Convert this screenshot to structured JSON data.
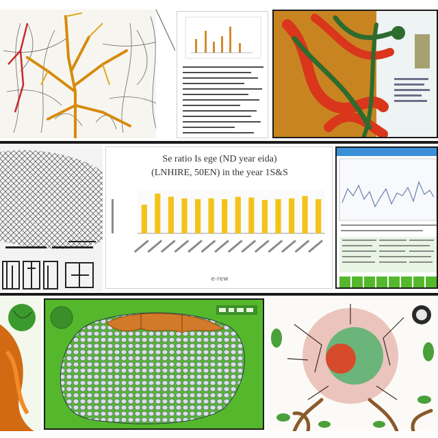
{
  "center_chart": {
    "title_line1": "Se ratio Is ege (ND year eida)",
    "title_line2": "(LNHIRE, 50EN) in the year 1S&S",
    "xlabel": "",
    "footer": "e-rew",
    "bar_color": "#f2c31a"
  },
  "chart_data": {
    "type": "bar",
    "categories": [
      "",
      "",
      "",
      "",
      "",
      "",
      "",
      "",
      "",
      "",
      "",
      "",
      "",
      ""
    ],
    "values": [
      72,
      100,
      92,
      88,
      86,
      88,
      86,
      92,
      90,
      84,
      86,
      88,
      94,
      86
    ],
    "ylim": [
      0,
      110
    ],
    "title": "Se ratio Is ege (ND year eida) (LNHIRE, 50EN) in the year 1S&S"
  },
  "colors": {
    "green": "#55b82c",
    "dark_green": "#2e7d32",
    "red": "#d9361c",
    "orange": "#d26a14",
    "yellow": "#e8b51c",
    "blue_bar": "#3a8fd6"
  }
}
